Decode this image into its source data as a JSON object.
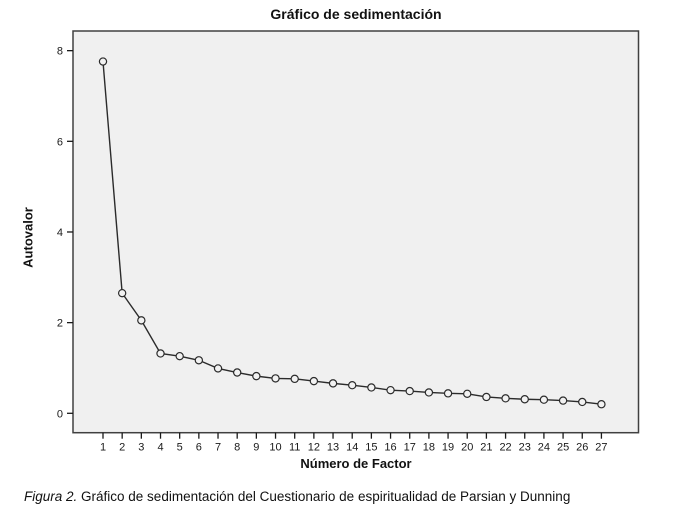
{
  "chart_data": {
    "type": "line",
    "title": "Gráfico de sedimentación",
    "xlabel": "Número de Factor",
    "ylabel": "Autovalor",
    "x": [
      1,
      2,
      3,
      4,
      5,
      6,
      7,
      8,
      9,
      10,
      11,
      12,
      13,
      14,
      15,
      16,
      17,
      18,
      19,
      20,
      21,
      22,
      23,
      24,
      25,
      26,
      27
    ],
    "values": [
      7.76,
      2.65,
      2.05,
      1.32,
      1.26,
      1.17,
      0.99,
      0.9,
      0.82,
      0.77,
      0.76,
      0.71,
      0.66,
      0.62,
      0.57,
      0.51,
      0.49,
      0.46,
      0.44,
      0.43,
      0.36,
      0.33,
      0.31,
      0.3,
      0.28,
      0.25,
      0.2
    ],
    "ylim": [
      0,
      8
    ],
    "yticks": [
      0,
      2,
      4,
      6,
      8
    ],
    "xtick_labels": [
      "1",
      "2",
      "3",
      "4",
      "5",
      "6",
      "7",
      "8",
      "9",
      "10",
      "11",
      "12",
      "13",
      "14",
      "15",
      "16",
      "17",
      "18",
      "19",
      "20",
      "21",
      "22",
      "23",
      "24",
      "25",
      "26",
      "27"
    ],
    "grid": false,
    "legend": null,
    "marker": "open-circle",
    "colors": {
      "line": "#2b2b2b",
      "marker_stroke": "#2b2b2b",
      "marker_fill": "#f2f2f2",
      "plot_background": "#f0f0f0",
      "plot_border": "#404040",
      "tick": "#1a1a1a",
      "figure_background": "#ffffff"
    }
  },
  "caption": {
    "prefix": "Figura 2.",
    "text": " Gráfico de sedimentación del Cuestionario de espiritualidad de Parsian y Dunning"
  }
}
